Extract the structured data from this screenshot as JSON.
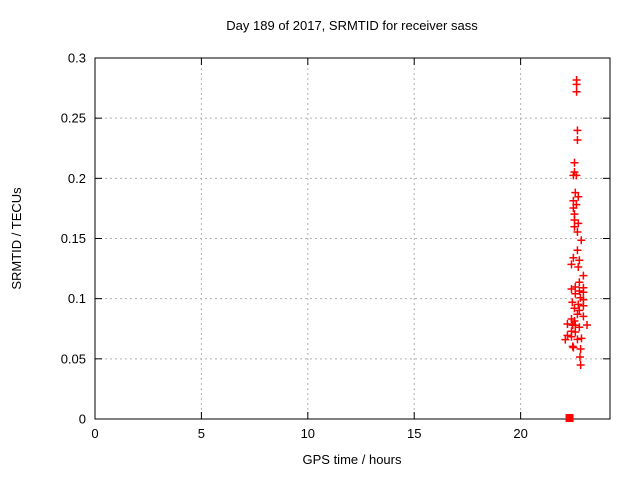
{
  "chart_data": {
    "type": "scatter",
    "title": "Day 189 of 2017, SRMTID for receiver sass",
    "xlabel": "GPS time / hours",
    "ylabel": "SRMTID / TECUs",
    "xlim": [
      0,
      24.2
    ],
    "ylim": [
      0,
      0.3
    ],
    "xticks": [
      0,
      5,
      10,
      15,
      20
    ],
    "xtick_labels": [
      "0",
      "5",
      "10",
      "15",
      "20"
    ],
    "yticks": [
      0,
      0.05,
      0.1,
      0.15,
      0.2,
      0.25,
      0.3
    ],
    "ytick_labels": [
      "0",
      "0.05",
      "0.1",
      "0.15",
      "0.2",
      "0.25",
      "0.3"
    ],
    "grid": "dashed-major",
    "legend_position": "none",
    "colors": {
      "marker": "#ff0000",
      "grid": "#b0b0b0",
      "axis": "#000000",
      "background": "#ffffff",
      "text": "#000000"
    },
    "series": [
      {
        "name": "SRMTID",
        "marker": "plus",
        "color": "#ff0000",
        "points": [
          [
            22.63,
            0.2817
          ],
          [
            22.63,
            0.2781
          ],
          [
            22.63,
            0.272
          ],
          [
            22.67,
            0.2399
          ],
          [
            22.67,
            0.2319
          ],
          [
            22.53,
            0.213
          ],
          [
            22.53,
            0.2053
          ],
          [
            22.48,
            0.2025
          ],
          [
            22.62,
            0.2025
          ],
          [
            22.57,
            0.1881
          ],
          [
            22.71,
            0.1847
          ],
          [
            22.48,
            0.1814
          ],
          [
            22.62,
            0.1781
          ],
          [
            22.48,
            0.1753
          ],
          [
            22.53,
            0.1703
          ],
          [
            22.53,
            0.1654
          ],
          [
            22.71,
            0.1626
          ],
          [
            22.53,
            0.1598
          ],
          [
            22.67,
            0.1554
          ],
          [
            22.85,
            0.1485
          ],
          [
            22.67,
            0.1402
          ],
          [
            22.48,
            0.134
          ],
          [
            22.76,
            0.1319
          ],
          [
            22.39,
            0.1285
          ],
          [
            22.71,
            0.1263
          ],
          [
            22.95,
            0.1191
          ],
          [
            22.76,
            0.1136
          ],
          [
            22.57,
            0.1097
          ],
          [
            22.95,
            0.1091
          ],
          [
            22.39,
            0.108
          ],
          [
            22.76,
            0.1064
          ],
          [
            22.95,
            0.1053
          ],
          [
            22.57,
            0.1041
          ],
          [
            22.81,
            0.1008
          ],
          [
            22.95,
            0.0991
          ],
          [
            22.43,
            0.097
          ],
          [
            22.71,
            0.0953
          ],
          [
            22.95,
            0.0941
          ],
          [
            22.53,
            0.092
          ],
          [
            22.76,
            0.0903
          ],
          [
            22.67,
            0.087
          ],
          [
            22.95,
            0.0853
          ],
          [
            22.39,
            0.0831
          ],
          [
            22.53,
            0.0814
          ],
          [
            22.2,
            0.0789
          ],
          [
            22.43,
            0.0784
          ],
          [
            22.45,
            0.078
          ],
          [
            22.57,
            0.0779
          ],
          [
            23.12,
            0.0781
          ],
          [
            22.76,
            0.0762
          ],
          [
            22.39,
            0.0729
          ],
          [
            22.57,
            0.0723
          ],
          [
            22.2,
            0.0695
          ],
          [
            22.39,
            0.0684
          ],
          [
            22.1,
            0.066
          ],
          [
            22.86,
            0.067
          ],
          [
            22.67,
            0.0662
          ],
          [
            22.45,
            0.0604
          ],
          [
            22.48,
            0.0594
          ],
          [
            22.82,
            0.0582
          ],
          [
            22.79,
            0.0515
          ],
          [
            22.82,
            0.0449
          ]
        ]
      },
      {
        "name": "zero-value",
        "marker": "filled-square",
        "color": "#ff0000",
        "points": [
          [
            22.3,
            0.0008
          ]
        ]
      }
    ]
  }
}
